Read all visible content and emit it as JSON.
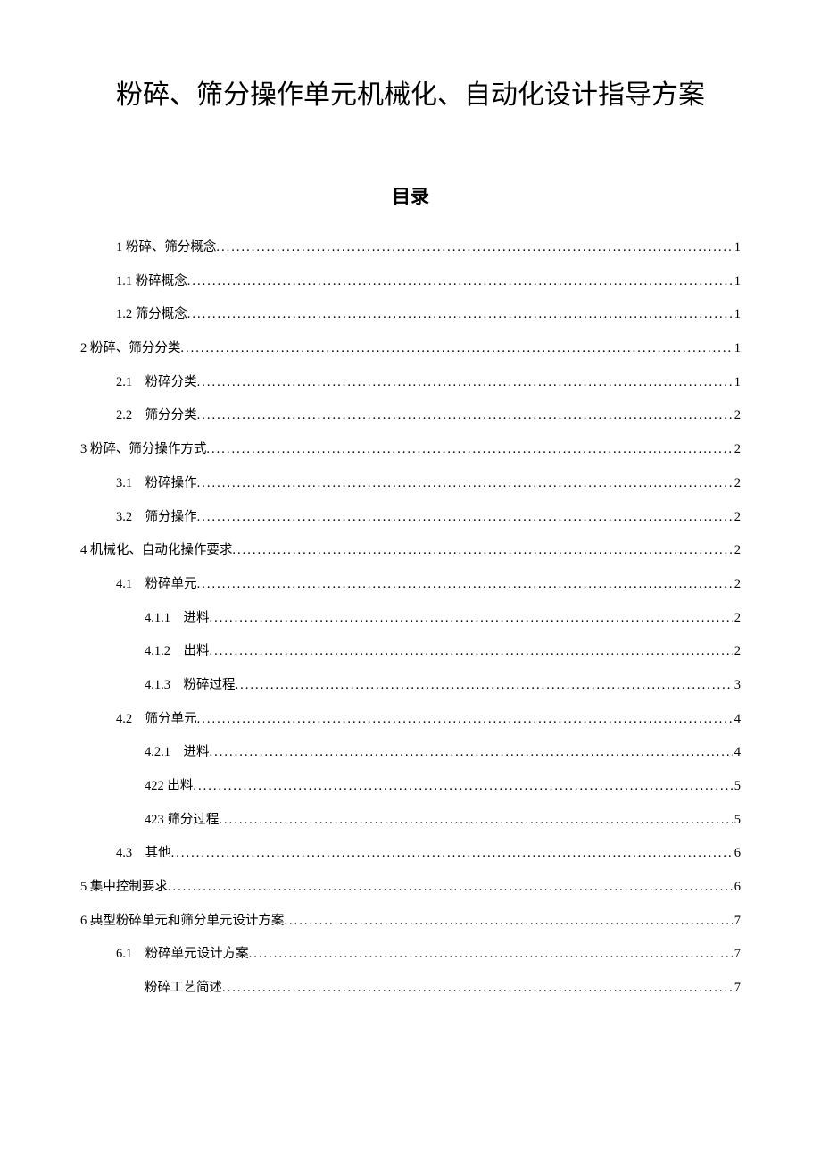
{
  "document": {
    "title": "粉碎、筛分操作单元机械化、自动化设计指导方案",
    "toc_heading": "目录"
  },
  "toc": [
    {
      "level": "level-1-indent",
      "label": "1 粉碎、筛分概念 ",
      "page": "1"
    },
    {
      "level": "level-2",
      "label": "1.1 粉碎概念",
      "page": "1"
    },
    {
      "level": "level-2",
      "label": "1.2 筛分概念",
      "page": "1"
    },
    {
      "level": "level-1",
      "label": "2 粉碎、筛分分类 ",
      "page": "1"
    },
    {
      "level": "level-2",
      "label": "2.1　粉碎分类",
      "page": "1"
    },
    {
      "level": "level-2",
      "label": "2.2　筛分分类 ",
      "page": "2"
    },
    {
      "level": "level-1",
      "label": "3 粉碎、筛分操作方式 ",
      "page": "2"
    },
    {
      "level": "level-2",
      "label": "3.1　粉碎操作",
      "page": "2"
    },
    {
      "level": "level-2",
      "label": "3.2　筛分操作 ",
      "page": "2"
    },
    {
      "level": "level-1",
      "label": "4 机械化、自动化操作要求 ",
      "page": "2"
    },
    {
      "level": "level-2",
      "label": "4.1　粉碎单元",
      "page": "2"
    },
    {
      "level": "level-3",
      "label": "4.1.1　进料 ",
      "page": "2"
    },
    {
      "level": "level-3",
      "label": "4.1.2　出料",
      "page": "2"
    },
    {
      "level": "level-3",
      "label": "4.1.3　粉碎过程",
      "page": "3"
    },
    {
      "level": "level-2",
      "label": "4.2　筛分单元 ",
      "page": "4"
    },
    {
      "level": "level-3",
      "label": "4.2.1　进料 ",
      "page": "4"
    },
    {
      "level": "level-3",
      "label": "422 出料 ",
      "page": "5"
    },
    {
      "level": "level-3",
      "label": "423 筛分过程 ",
      "page": "5"
    },
    {
      "level": "level-2",
      "label": "4.3　其他 ",
      "page": "6"
    },
    {
      "level": "level-1",
      "label": "5 集中控制要求 ",
      "page": " 6"
    },
    {
      "level": "level-1",
      "label": "6 典型粉碎单元和筛分单元设计方案 ",
      "page": "7"
    },
    {
      "level": "level-2",
      "label": "6.1　粉碎单元设计方案",
      "page": "7"
    },
    {
      "level": "level-3",
      "label": "粉碎工艺简述 ",
      "page": "7"
    }
  ]
}
